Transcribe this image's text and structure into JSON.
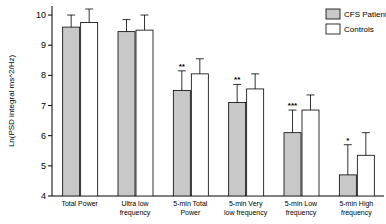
{
  "chart_data": {
    "type": "bar",
    "y_label": "Ln(PSD integral ms^2/Hz)",
    "categories": [
      "Total Power",
      "Ultra low\nfrequency",
      "5-min Total\nPower",
      "5-min Very\nlow frequency",
      "5-min Low\nfrequency",
      "5-min High\nfrequency"
    ],
    "series": [
      {
        "name": "CFS Patients",
        "color": "#c8c8c8",
        "values": [
          9.6,
          9.45,
          7.5,
          7.1,
          6.1,
          4.7
        ],
        "errors": [
          0.4,
          0.4,
          0.65,
          0.6,
          0.75,
          1.0
        ],
        "significance": [
          null,
          null,
          "**",
          "**",
          "***",
          "*"
        ]
      },
      {
        "name": "Controls",
        "color": "#ffffff",
        "values": [
          9.75,
          9.5,
          8.05,
          7.55,
          6.85,
          5.35
        ],
        "errors": [
          0.45,
          0.5,
          0.5,
          0.5,
          0.5,
          0.75
        ]
      }
    ],
    "ylim": [
      4,
      10.3
    ],
    "yticks": [
      4,
      5,
      6,
      7,
      8,
      9,
      10
    ],
    "legend": "upper right",
    "grid": false
  }
}
